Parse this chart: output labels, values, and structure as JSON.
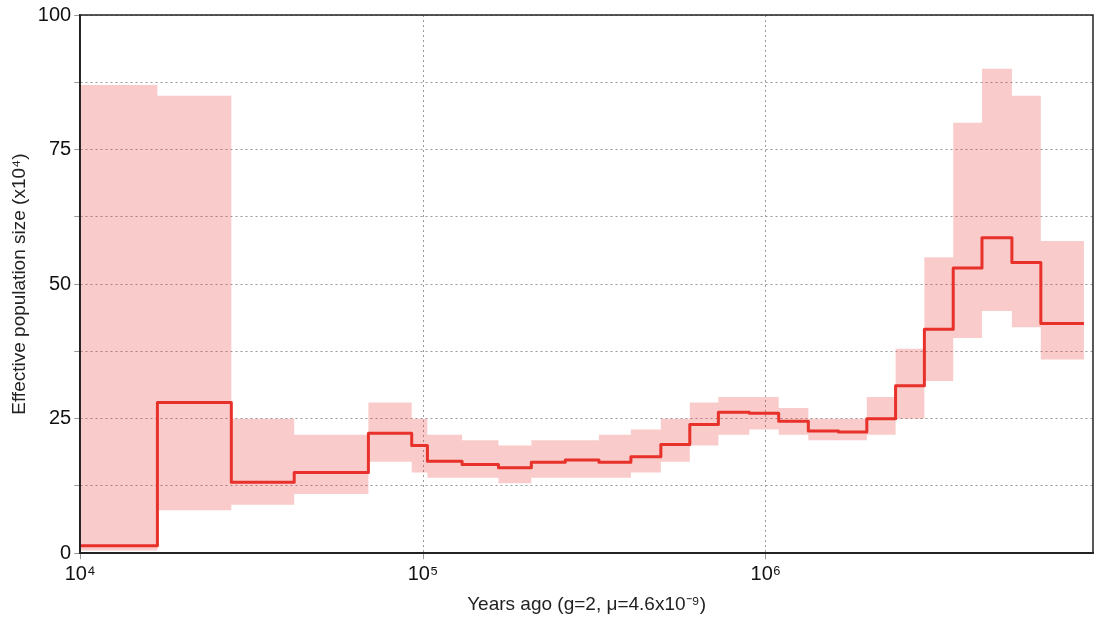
{
  "chart_data": {
    "type": "step",
    "xlabel": "Years ago (g=2, μ=4.6x10⁻⁹)",
    "ylabel": "Effective population size (x10⁴)",
    "log": "x",
    "grid": true,
    "legend": false,
    "xlim": [
      10000,
      9000000
    ],
    "xticks": [
      {
        "value": 10000,
        "label": "10⁴"
      },
      {
        "value": 100000,
        "label": "10⁵"
      },
      {
        "value": 1000000,
        "label": "10⁶"
      }
    ],
    "ylim": [
      0,
      100
    ],
    "yticks": [
      0,
      {
        "value": 12.5,
        "label": null
      },
      25,
      {
        "value": 37.5,
        "label": null
      },
      50,
      {
        "value": 62.5,
        "label": null
      },
      75,
      {
        "value": 87.5,
        "label": null
      },
      100
    ],
    "series": [
      {
        "color": "#e8312a",
        "x": [
          10000,
          16800,
          27600,
          42100,
          69300,
          92700,
          103000,
          130000,
          166000,
          207000,
          260000,
          326000,
          404000,
          494000,
          600000,
          727000,
          895000,
          1090000,
          1330000,
          1630000,
          1970000,
          2390000,
          2900000,
          3520000,
          4270000,
          5220000,
          6340000,
          8470000
        ],
        "values": [
          1.4,
          28,
          13.2,
          15,
          22.3,
          20,
          17.1,
          16.5,
          15.9,
          16.9,
          17.3,
          16.9,
          17.9,
          20.2,
          23.9,
          26.2,
          26,
          24.5,
          22.7,
          22.5,
          25,
          31.1,
          41.6,
          53,
          58.6,
          54,
          42.7,
          42.7
        ],
        "lower": [
          0.5,
          8,
          9,
          11,
          17,
          15,
          14,
          14,
          13,
          14,
          14,
          14,
          15,
          17,
          20,
          22,
          23,
          22,
          21,
          21,
          22,
          25,
          32,
          40,
          45,
          42,
          36,
          36
        ],
        "upper": [
          87,
          85,
          25,
          22,
          28,
          25,
          22,
          21,
          20,
          21,
          21,
          22,
          23,
          25,
          28,
          29,
          29,
          27,
          25,
          25,
          29,
          38,
          55,
          80,
          90,
          85,
          58,
          58
        ]
      }
    ]
  }
}
